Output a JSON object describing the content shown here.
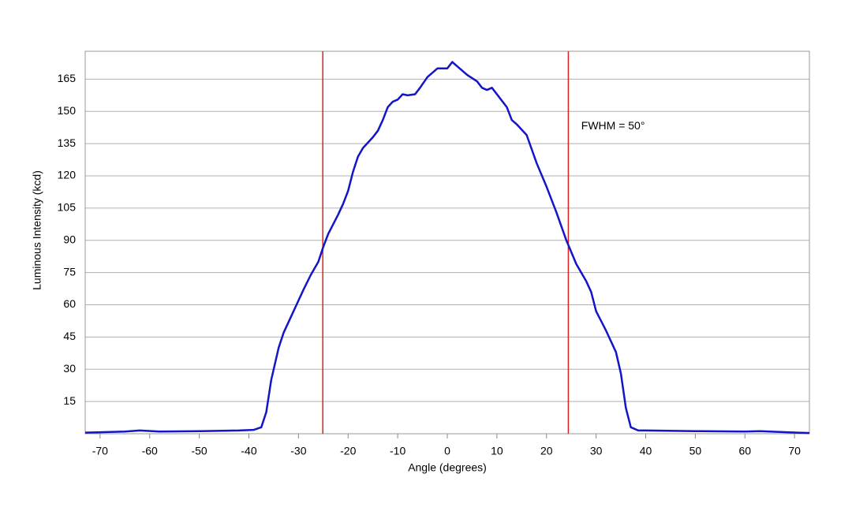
{
  "chart_data": {
    "type": "line",
    "xlabel": "Angle (degrees)",
    "ylabel": "Luminous Intensity (kcd)",
    "series": [
      {
        "color": "#1414c8",
        "x": [
          -73,
          -65,
          -62,
          -58,
          -50,
          -42,
          -39,
          -37.5,
          -36.5,
          -35.5,
          -34,
          -33,
          -31,
          -29,
          -27.5,
          -26,
          -25,
          -24,
          -22,
          -21,
          -20,
          -19,
          -18,
          -17,
          -15,
          -14,
          -13,
          -12,
          -11,
          -10,
          -9,
          -8,
          -6.5,
          -5.5,
          -4,
          -2,
          0,
          1,
          2,
          4,
          6,
          7,
          8,
          9,
          10,
          12,
          13,
          14,
          16,
          18,
          20,
          22,
          24,
          26,
          28,
          29,
          30,
          32,
          34,
          35,
          36,
          37,
          38.5,
          40,
          50,
          60,
          63,
          65,
          73
        ],
        "values": [
          0.5,
          1,
          1.5,
          1,
          1.2,
          1.5,
          1.8,
          3,
          10,
          25,
          40,
          47,
          57,
          67,
          74,
          80,
          87,
          93,
          102,
          107,
          113,
          122,
          129,
          133,
          138,
          141,
          146,
          152,
          154.5,
          155.5,
          158,
          157.5,
          158,
          161,
          166,
          170,
          170,
          173,
          171,
          167,
          164,
          161,
          160,
          161,
          158,
          152,
          146,
          144,
          139,
          126,
          115,
          103,
          90,
          79,
          71,
          66,
          57,
          48,
          38,
          28,
          12,
          3,
          1.5,
          1.5,
          1.2,
          1,
          1.2,
          1,
          0.3
        ]
      }
    ],
    "vlines": [
      -25.1,
      24.4
    ],
    "vline_color": "#e02020",
    "annotation": {
      "text": "FWHM = 50°",
      "x": 27,
      "y": 143
    },
    "xlim": [
      -73,
      73
    ],
    "xticks": [
      -70,
      -60,
      -50,
      -40,
      -30,
      -20,
      -10,
      0,
      10,
      20,
      30,
      40,
      50,
      60,
      70
    ],
    "ylim": [
      0,
      178
    ],
    "yticks": [
      15,
      30,
      45,
      60,
      75,
      90,
      105,
      120,
      135,
      150,
      165
    ],
    "grid": true
  }
}
